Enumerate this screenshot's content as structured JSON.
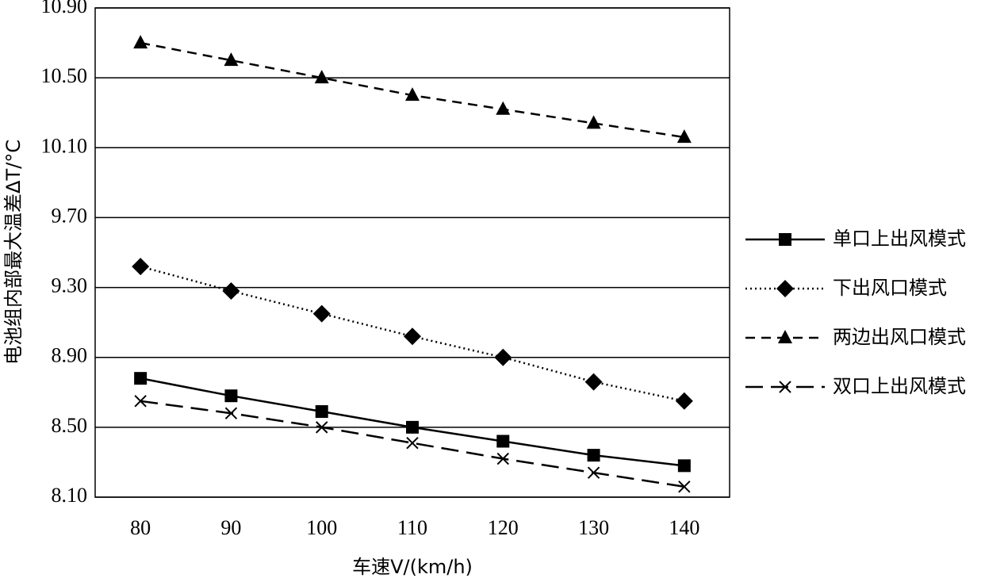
{
  "chart_data": {
    "type": "line",
    "x_label": "车速V/(km/h)",
    "y_label": "电池组内部最大温差ΔT/°C",
    "categories": [
      "80",
      "90",
      "100",
      "110",
      "120",
      "130",
      "140"
    ],
    "ylim": [
      8.1,
      10.9
    ],
    "yticks": [
      {
        "value": 8.1,
        "label": "8.10"
      },
      {
        "value": 8.5,
        "label": "8.50"
      },
      {
        "value": 8.9,
        "label": "8.90"
      },
      {
        "value": 9.3,
        "label": "9.30"
      },
      {
        "value": 9.7,
        "label": "9.70"
      },
      {
        "value": 10.1,
        "label": "10.10"
      },
      {
        "value": 10.5,
        "label": "10.50"
      },
      {
        "value": 10.9,
        "label": "10.90"
      }
    ],
    "grid": true,
    "legend": "right",
    "series": [
      {
        "name": "单口上出风模式",
        "color": "#000000",
        "marker": "square",
        "dash": "solid",
        "values": [
          8.78,
          8.68,
          8.59,
          8.5,
          8.42,
          8.34,
          8.28
        ]
      },
      {
        "name": "下出风口模式",
        "color": "#000000",
        "marker": "diamond",
        "dash": "dotted",
        "values": [
          9.42,
          9.28,
          9.15,
          9.02,
          8.9,
          8.76,
          8.65
        ]
      },
      {
        "name": "两边出风口模式",
        "color": "#000000",
        "marker": "triangle",
        "dash": "dashed",
        "values": [
          10.7,
          10.6,
          10.5,
          10.4,
          10.32,
          10.24,
          10.16
        ]
      },
      {
        "name": "双口上出风模式",
        "color": "#000000",
        "marker": "x",
        "dash": "longdash",
        "values": [
          8.65,
          8.58,
          8.5,
          8.41,
          8.32,
          8.24,
          8.16
        ]
      }
    ]
  }
}
